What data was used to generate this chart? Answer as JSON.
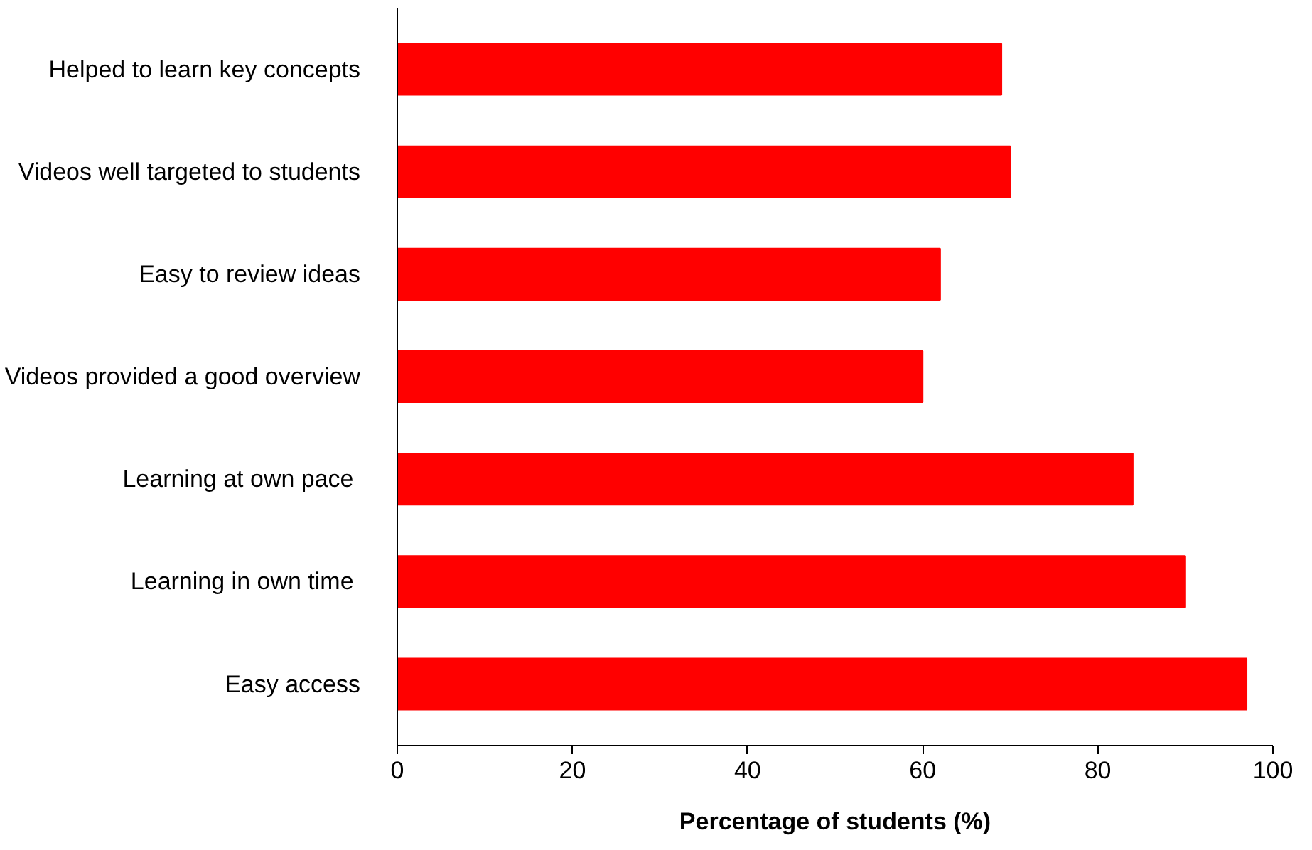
{
  "chart_data": {
    "type": "bar",
    "orientation": "horizontal",
    "xlabel": "Percentage of students (%)",
    "categories": [
      "Helped to learn key concepts",
      "Videos well targeted to students",
      "Easy to review ideas",
      "Videos provided a good overview",
      "Learning at  own pace",
      "Learning in  own time",
      "Easy access"
    ],
    "values": [
      69,
      70,
      62,
      60,
      84,
      90,
      97
    ],
    "color": "#ff0000",
    "xlim": [
      0,
      100
    ],
    "xticks": [
      0,
      20,
      40,
      60,
      80,
      100
    ],
    "grid": false
  }
}
